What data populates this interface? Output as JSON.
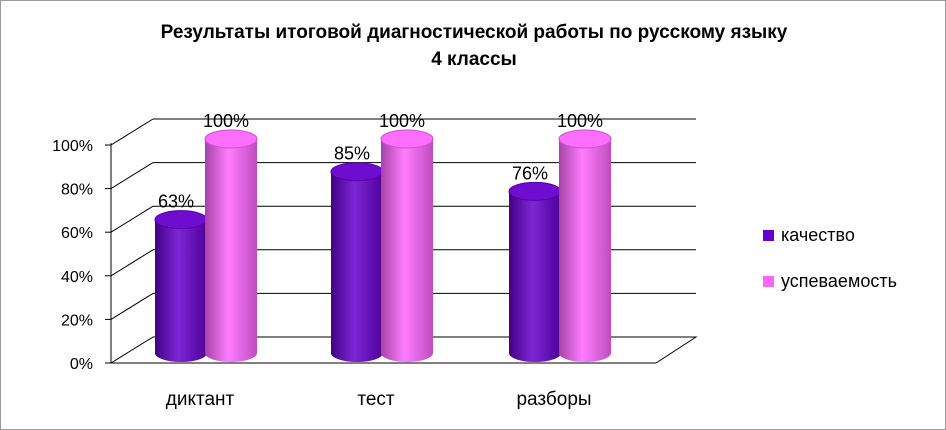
{
  "chart_data": {
    "type": "bar",
    "title_lines": [
      "Результаты итоговой диагностической работы по русскому языку",
      "4 классы"
    ],
    "categories": [
      "диктант",
      "тест",
      "разборы"
    ],
    "series": [
      {
        "name": "качество",
        "values": [
          63,
          85,
          76
        ],
        "labels": [
          "63%",
          "85%",
          "76%"
        ],
        "color": "#6600cc"
      },
      {
        "name": "успеваемость",
        "values": [
          100,
          100,
          100
        ],
        "labels": [
          "100%",
          "100%",
          "100%"
        ],
        "color": "#ff66ff"
      }
    ],
    "y_ticks": [
      "0%",
      "20%",
      "40%",
      "60%",
      "80%",
      "100%"
    ],
    "ylim": [
      0,
      100
    ],
    "grid": true,
    "legend_position": "right",
    "style": "3d-cylinder"
  }
}
